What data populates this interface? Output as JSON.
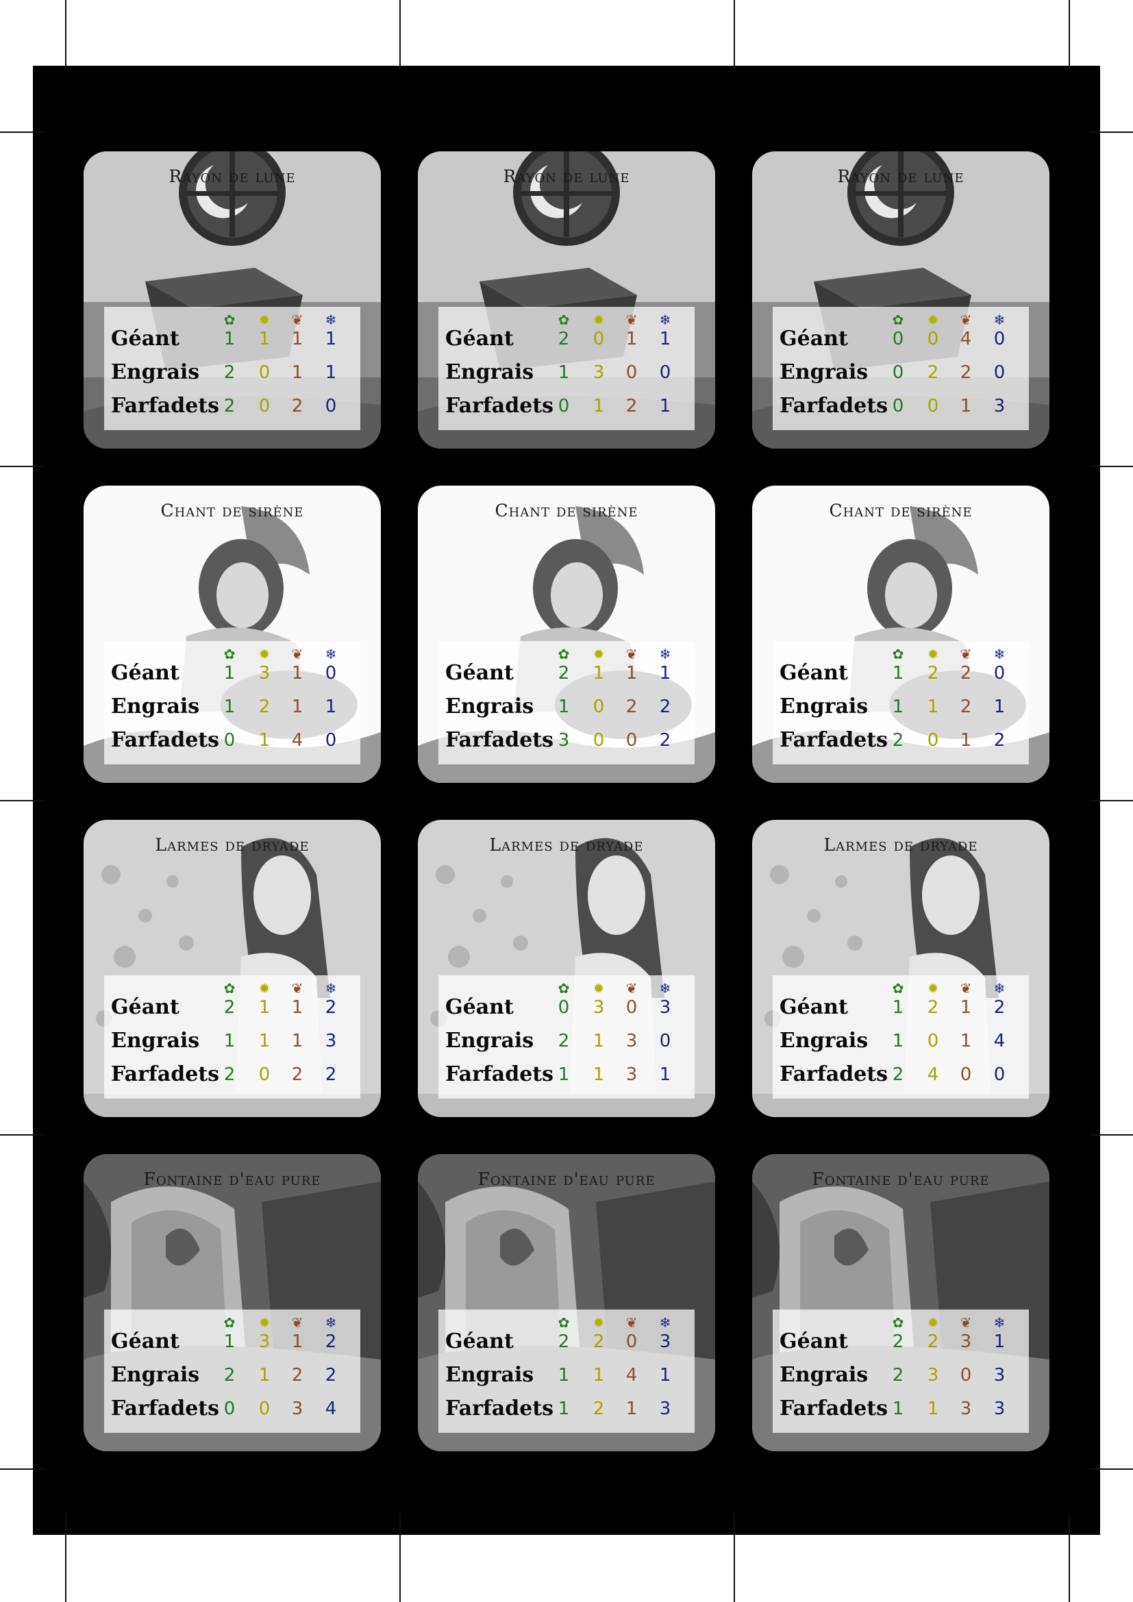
{
  "labels": {
    "row1": "Géant",
    "row2": "Engrais",
    "row3": "Farfadets"
  },
  "icons": {
    "c1": "clover-icon",
    "c2": "sun-icon",
    "c3": "leaf-icon",
    "c4": "snowflake-icon"
  },
  "colors": {
    "c1": "#237a1f",
    "c2": "#a8a300",
    "c3": "#8e4f2d",
    "c4": "#1b237a"
  },
  "cards": [
    {
      "title": "Rayon de lune",
      "art": "moon",
      "rows": [
        [
          1,
          1,
          1,
          1
        ],
        [
          2,
          0,
          1,
          1
        ],
        [
          2,
          0,
          2,
          0
        ]
      ]
    },
    {
      "title": "Rayon de lune",
      "art": "moon",
      "rows": [
        [
          2,
          0,
          1,
          1
        ],
        [
          1,
          3,
          0,
          0
        ],
        [
          0,
          1,
          2,
          1
        ]
      ]
    },
    {
      "title": "Rayon de lune",
      "art": "moon",
      "rows": [
        [
          0,
          0,
          4,
          0
        ],
        [
          0,
          2,
          2,
          0
        ],
        [
          0,
          0,
          1,
          3
        ]
      ]
    },
    {
      "title": "Chant de sirène",
      "art": "siren",
      "rows": [
        [
          1,
          3,
          1,
          0
        ],
        [
          1,
          2,
          1,
          1
        ],
        [
          0,
          1,
          4,
          0
        ]
      ]
    },
    {
      "title": "Chant de sirène",
      "art": "siren",
      "rows": [
        [
          2,
          1,
          1,
          1
        ],
        [
          1,
          0,
          2,
          2
        ],
        [
          3,
          0,
          0,
          2
        ]
      ]
    },
    {
      "title": "Chant de sirène",
      "art": "siren",
      "rows": [
        [
          1,
          2,
          2,
          0
        ],
        [
          1,
          1,
          2,
          1
        ],
        [
          2,
          0,
          1,
          2
        ]
      ]
    },
    {
      "title": "Larmes de dryade",
      "art": "dryad",
      "rows": [
        [
          2,
          1,
          1,
          2
        ],
        [
          1,
          1,
          1,
          3
        ],
        [
          2,
          0,
          2,
          2
        ]
      ]
    },
    {
      "title": "Larmes de dryade",
      "art": "dryad",
      "rows": [
        [
          0,
          3,
          0,
          3
        ],
        [
          2,
          1,
          3,
          0
        ],
        [
          1,
          1,
          3,
          1
        ]
      ]
    },
    {
      "title": "Larmes de dryade",
      "art": "dryad",
      "rows": [
        [
          1,
          2,
          1,
          2
        ],
        [
          1,
          0,
          1,
          4
        ],
        [
          2,
          4,
          0,
          0
        ]
      ]
    },
    {
      "title": "Fontaine d'eau pure",
      "art": "fountain",
      "rows": [
        [
          1,
          3,
          1,
          2
        ],
        [
          2,
          1,
          2,
          2
        ],
        [
          0,
          0,
          3,
          4
        ]
      ]
    },
    {
      "title": "Fontaine d'eau pure",
      "art": "fountain",
      "rows": [
        [
          2,
          2,
          0,
          3
        ],
        [
          1,
          1,
          4,
          1
        ],
        [
          1,
          2,
          1,
          3
        ]
      ]
    },
    {
      "title": "Fontaine d'eau pure",
      "art": "fountain",
      "rows": [
        [
          2,
          2,
          3,
          1
        ],
        [
          2,
          3,
          0,
          3
        ],
        [
          1,
          1,
          3,
          3
        ]
      ]
    }
  ]
}
